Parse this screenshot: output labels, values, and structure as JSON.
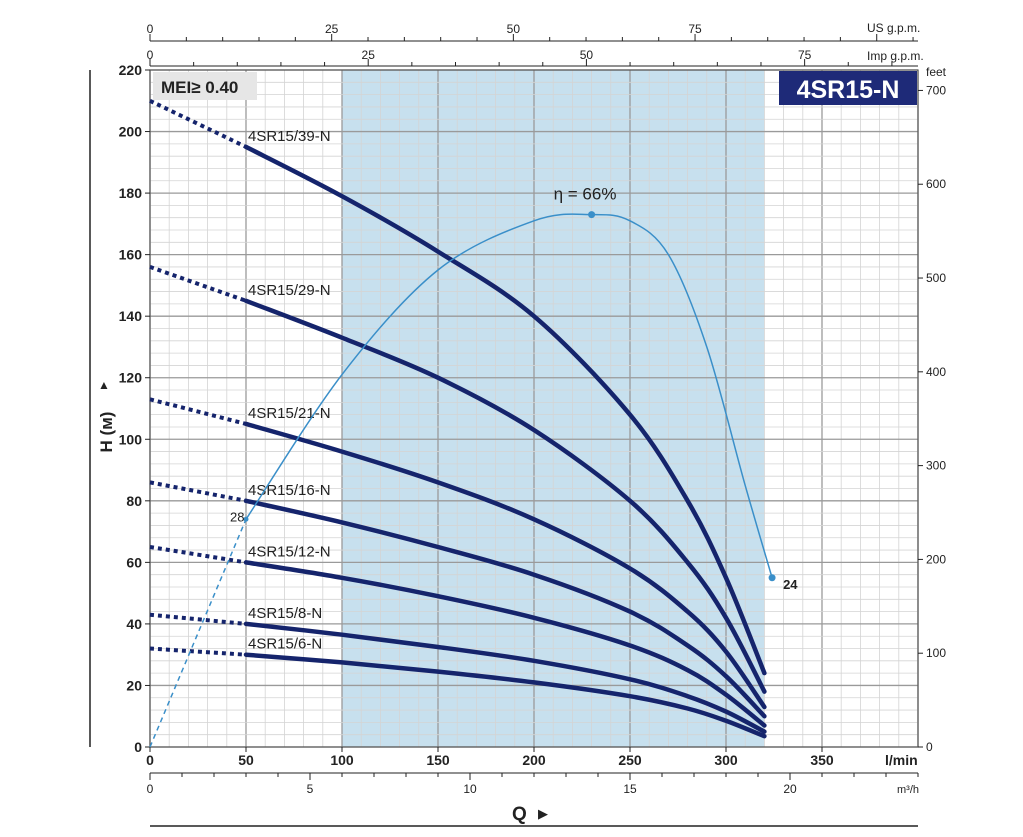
{
  "chart_data": {
    "type": "line",
    "model_badge": "4SR15-N",
    "mei_badge": "MEI≥ 0.40",
    "y_axis": {
      "label": "H (м)",
      "ylim": [
        0,
        220
      ],
      "ticks": [
        "0",
        "20",
        "40",
        "60",
        "80",
        "100",
        "120",
        "140",
        "160",
        "180",
        "200",
        "220"
      ]
    },
    "y_axis_right": {
      "unit": "feet",
      "ticks": [
        "0",
        "100",
        "200",
        "300",
        "400",
        "500",
        "600",
        "700"
      ]
    },
    "x_axis": {
      "unit": "l/min",
      "xlim": [
        0,
        400
      ],
      "ticks": [
        "0",
        "50",
        "100",
        "150",
        "200",
        "250",
        "300",
        "350"
      ]
    },
    "x_axis_m3h": {
      "unit": "m³/h",
      "ticks": [
        "0",
        "5",
        "10",
        "15",
        "20"
      ]
    },
    "x_axis_us": {
      "unit": "US g.p.m.",
      "ticks": [
        "0",
        "25",
        "50",
        "75"
      ]
    },
    "x_axis_imp": {
      "unit": "Imp g.p.m.",
      "ticks": [
        "0",
        "25",
        "50",
        "75"
      ]
    },
    "q_label": "Q",
    "recommended_range_lmin": [
      100,
      320
    ],
    "series": [
      {
        "name": "4SR15/39-N",
        "solid_start": 50,
        "points": [
          [
            0,
            210
          ],
          [
            50,
            195
          ],
          [
            100,
            179
          ],
          [
            150,
            161
          ],
          [
            200,
            140
          ],
          [
            250,
            108
          ],
          [
            280,
            80
          ],
          [
            300,
            55
          ],
          [
            320,
            24
          ]
        ]
      },
      {
        "name": "4SR15/29-N",
        "solid_start": 50,
        "points": [
          [
            0,
            156
          ],
          [
            50,
            145
          ],
          [
            100,
            133
          ],
          [
            150,
            120
          ],
          [
            200,
            103
          ],
          [
            250,
            80
          ],
          [
            280,
            60
          ],
          [
            300,
            42
          ],
          [
            320,
            18
          ]
        ]
      },
      {
        "name": "4SR15/21-N",
        "solid_start": 50,
        "points": [
          [
            0,
            113
          ],
          [
            50,
            105
          ],
          [
            100,
            96
          ],
          [
            150,
            86
          ],
          [
            200,
            74
          ],
          [
            250,
            58
          ],
          [
            280,
            44
          ],
          [
            300,
            31
          ],
          [
            320,
            13
          ]
        ]
      },
      {
        "name": "4SR15/16-N",
        "solid_start": 50,
        "points": [
          [
            0,
            86
          ],
          [
            50,
            80
          ],
          [
            100,
            73
          ],
          [
            150,
            65
          ],
          [
            200,
            56
          ],
          [
            250,
            44
          ],
          [
            280,
            33
          ],
          [
            300,
            23
          ],
          [
            320,
            10
          ]
        ]
      },
      {
        "name": "4SR15/12-N",
        "solid_start": 50,
        "points": [
          [
            0,
            65
          ],
          [
            50,
            60
          ],
          [
            100,
            55
          ],
          [
            150,
            49
          ],
          [
            200,
            42
          ],
          [
            250,
            33
          ],
          [
            280,
            25
          ],
          [
            300,
            17
          ],
          [
            320,
            7
          ]
        ]
      },
      {
        "name": "4SR15/8-N",
        "solid_start": 50,
        "points": [
          [
            0,
            43
          ],
          [
            50,
            40
          ],
          [
            100,
            36.5
          ],
          [
            150,
            32.5
          ],
          [
            200,
            28
          ],
          [
            250,
            22
          ],
          [
            280,
            16.5
          ],
          [
            300,
            11.5
          ],
          [
            320,
            5
          ]
        ]
      },
      {
        "name": "4SR15/6-N",
        "solid_start": 50,
        "points": [
          [
            0,
            32
          ],
          [
            50,
            30
          ],
          [
            100,
            27.5
          ],
          [
            150,
            24.5
          ],
          [
            200,
            21
          ],
          [
            250,
            16.5
          ],
          [
            280,
            12.5
          ],
          [
            300,
            8.5
          ],
          [
            320,
            3.5
          ]
        ]
      }
    ],
    "efficiency": {
      "label": "η = 66%",
      "start_label": "28",
      "end_label": "24",
      "dashed_until": 50,
      "points": [
        [
          0,
          0
        ],
        [
          50,
          74
        ],
        [
          100,
          121
        ],
        [
          150,
          155
        ],
        [
          200,
          171
        ],
        [
          230,
          173
        ],
        [
          250,
          171
        ],
        [
          270,
          160
        ],
        [
          290,
          130
        ],
        [
          310,
          85
        ],
        [
          324,
          55
        ]
      ],
      "peak": [
        230,
        173
      ],
      "end": [
        324,
        55
      ]
    },
    "colors": {
      "curve": "#15246c",
      "efficiency": "#3a8fc9",
      "band": "#c7e0ee",
      "badge_bg": "#1e2a78",
      "mei_bg": "#e6e6e6"
    }
  }
}
